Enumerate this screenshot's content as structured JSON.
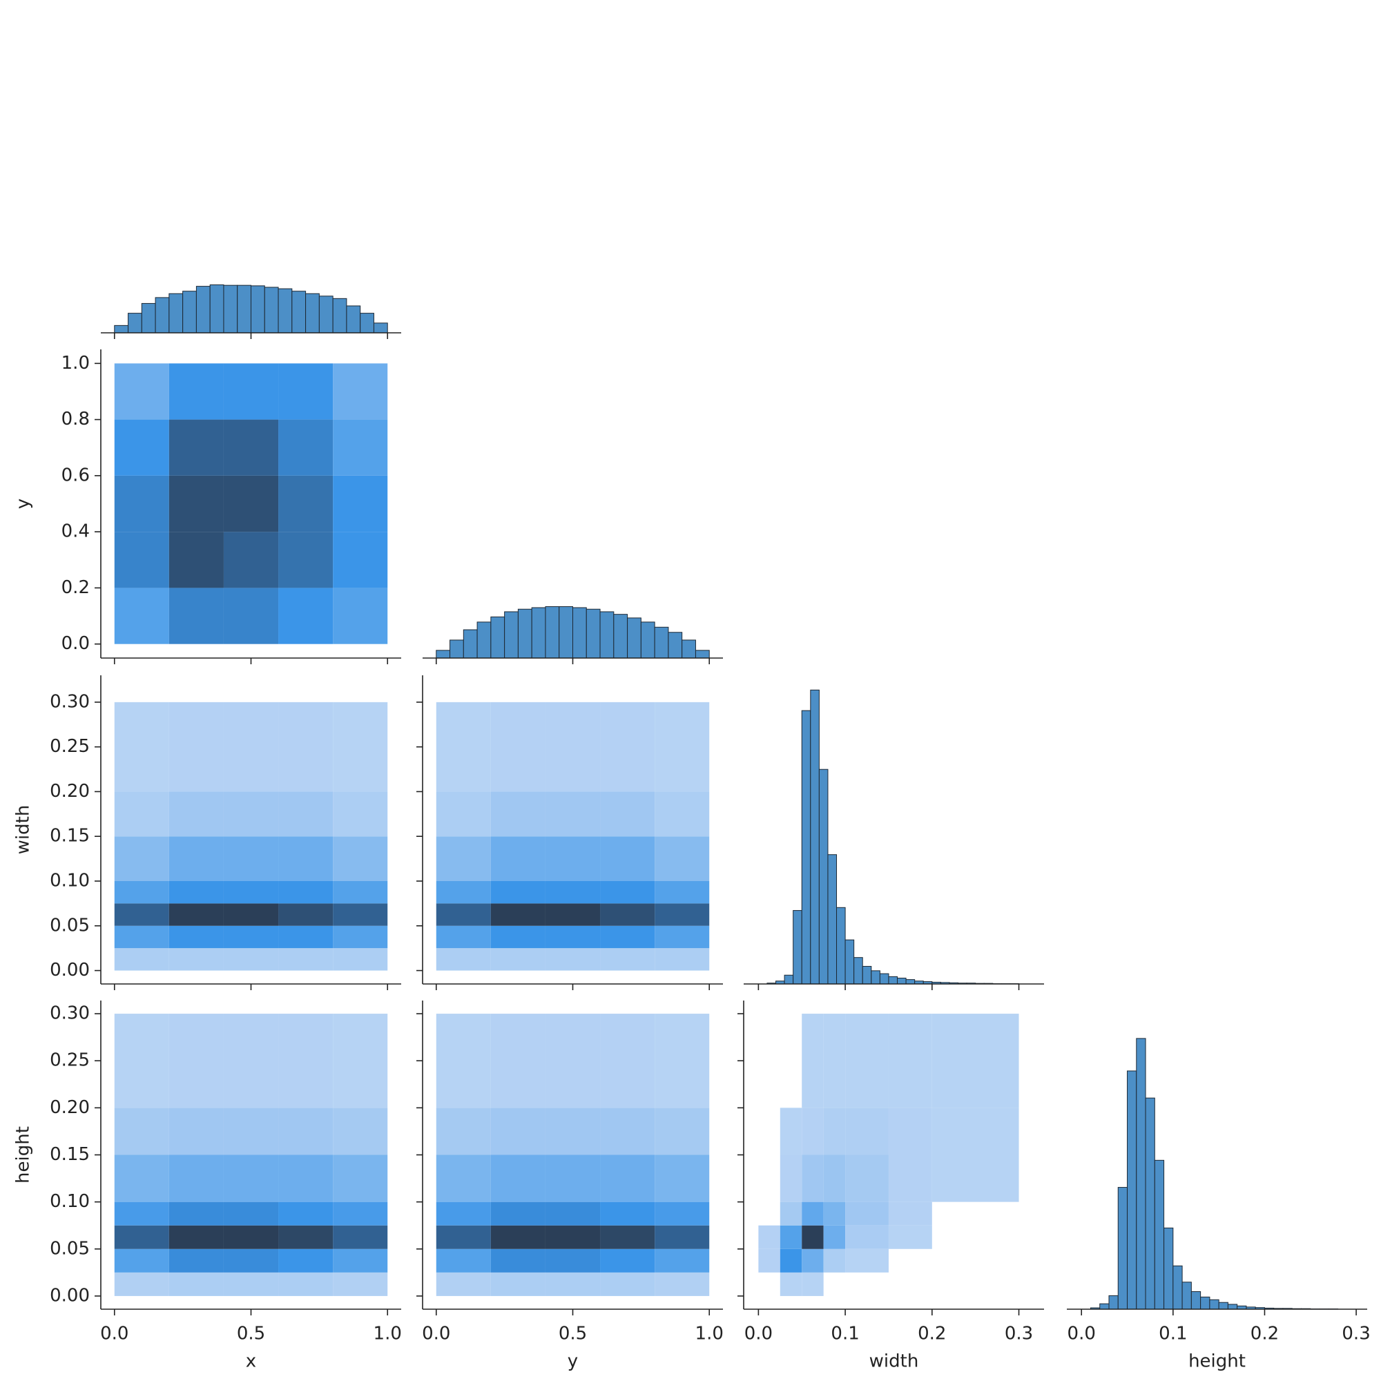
{
  "chart_data": {
    "type": "pairplot",
    "hist_color": "#4c8fc7",
    "edge_color": "#1d2833",
    "cmap": [
      "#b9d4f4",
      "#3b95e8",
      "#2b3f58"
    ],
    "variables": [
      {
        "label": "x",
        "lim": [
          -0.05,
          1.05
        ],
        "ticks": [
          {
            "value": 0,
            "label": "0.0"
          },
          {
            "value": 0.5,
            "label": "0.5"
          },
          {
            "value": 1,
            "label": "1.0"
          }
        ]
      },
      {
        "label": "y",
        "lim": [
          -0.05,
          1.05
        ],
        "ticks": [
          {
            "value": 0,
            "label": "0.0"
          },
          {
            "value": 0.2,
            "label": "0.2"
          },
          {
            "value": 0.4,
            "label": "0.4"
          },
          {
            "value": 0.6,
            "label": "0.6"
          },
          {
            "value": 0.8,
            "label": "0.8"
          },
          {
            "value": 1,
            "label": "1.0"
          }
        ],
        "xticks": [
          {
            "value": 0,
            "label": "0.0"
          },
          {
            "value": 0.5,
            "label": "0.5"
          },
          {
            "value": 1,
            "label": "1.0"
          }
        ]
      },
      {
        "label": "width",
        "lim": [
          -0.015,
          0.33
        ],
        "ticks": [
          {
            "value": 0,
            "label": "0.00"
          },
          {
            "value": 0.05,
            "label": "0.05"
          },
          {
            "value": 0.1,
            "label": "0.10"
          },
          {
            "value": 0.15,
            "label": "0.15"
          },
          {
            "value": 0.2,
            "label": "0.20"
          },
          {
            "value": 0.25,
            "label": "0.25"
          },
          {
            "value": 0.3,
            "label": "0.30"
          }
        ],
        "xlim": [
          -0.017,
          0.329
        ],
        "xticks": [
          {
            "value": 0,
            "label": "0.0"
          },
          {
            "value": 0.1,
            "label": "0.1"
          },
          {
            "value": 0.2,
            "label": "0.2"
          },
          {
            "value": 0.3,
            "label": "0.3"
          }
        ]
      },
      {
        "label": "height",
        "lim": [
          -0.014,
          0.314
        ],
        "ticks": [
          {
            "value": 0,
            "label": "0.00"
          },
          {
            "value": 0.05,
            "label": "0.05"
          },
          {
            "value": 0.1,
            "label": "0.10"
          },
          {
            "value": 0.15,
            "label": "0.15"
          },
          {
            "value": 0.2,
            "label": "0.20"
          },
          {
            "value": 0.25,
            "label": "0.25"
          },
          {
            "value": 0.3,
            "label": "0.30"
          }
        ],
        "xlim": [
          -0.016,
          0.312
        ],
        "xticks": [
          {
            "value": 0,
            "label": "0.0"
          },
          {
            "value": 0.1,
            "label": "0.1"
          },
          {
            "value": 0.2,
            "label": "0.2"
          },
          {
            "value": 0.3,
            "label": "0.3"
          }
        ]
      }
    ],
    "diagonal": [
      {
        "type": "histogram",
        "ylim": [
          0,
          6.3
        ],
        "bins": [
          0,
          0.05,
          0.1,
          0.15,
          0.2,
          0.25,
          0.3,
          0.35,
          0.4,
          0.45,
          0.5,
          0.55,
          0.6,
          0.65,
          0.7,
          0.75,
          0.8,
          0.85,
          0.9,
          0.95,
          1
        ],
        "values": [
          0.15,
          0.4,
          0.6,
          0.72,
          0.8,
          0.85,
          0.95,
          0.98,
          0.97,
          0.97,
          0.96,
          0.93,
          0.9,
          0.85,
          0.8,
          0.75,
          0.7,
          0.55,
          0.4,
          0.2
        ]
      },
      {
        "type": "histogram",
        "ylim": [
          0,
          6
        ],
        "bins": [
          0,
          0.05,
          0.1,
          0.15,
          0.2,
          0.25,
          0.3,
          0.35,
          0.4,
          0.45,
          0.5,
          0.55,
          0.6,
          0.65,
          0.7,
          0.75,
          0.8,
          0.85,
          0.9,
          0.95,
          1
        ],
        "values": [
          0.15,
          0.35,
          0.55,
          0.7,
          0.8,
          0.9,
          0.95,
          0.98,
          1,
          1,
          0.98,
          0.95,
          0.9,
          0.85,
          0.78,
          0.7,
          0.6,
          0.5,
          0.35,
          0.15
        ]
      },
      {
        "type": "histogram",
        "ylim": [
          0,
          1.05
        ],
        "bins": [
          0,
          0.01,
          0.02,
          0.03,
          0.04,
          0.05,
          0.06,
          0.07,
          0.08,
          0.09,
          0.1,
          0.11,
          0.12,
          0.13,
          0.14,
          0.15,
          0.16,
          0.17,
          0.18,
          0.19,
          0.2,
          0.21,
          0.22,
          0.23,
          0.24,
          0.25,
          0.26,
          0.27,
          0.28,
          0.29,
          0.3
        ],
        "values": [
          0,
          0.003,
          0.01,
          0.03,
          0.25,
          0.93,
          1,
          0.73,
          0.44,
          0.26,
          0.15,
          0.09,
          0.06,
          0.045,
          0.035,
          0.025,
          0.02,
          0.015,
          0.01,
          0.008,
          0.006,
          0.005,
          0.004,
          0.003,
          0.003,
          0.002,
          0.002,
          0.001,
          0.001,
          0.001
        ]
      },
      {
        "type": "histogram",
        "ylim": [
          0,
          1.14
        ],
        "bins": [
          0,
          0.01,
          0.02,
          0.03,
          0.04,
          0.05,
          0.06,
          0.07,
          0.08,
          0.09,
          0.1,
          0.11,
          0.12,
          0.13,
          0.14,
          0.15,
          0.16,
          0.17,
          0.18,
          0.19,
          0.2,
          0.21,
          0.22,
          0.23,
          0.24,
          0.25,
          0.26,
          0.27,
          0.28,
          0.29,
          0.3
        ],
        "values": [
          0,
          0.005,
          0.02,
          0.05,
          0.45,
          0.88,
          1,
          0.78,
          0.55,
          0.3,
          0.16,
          0.1,
          0.065,
          0.045,
          0.035,
          0.025,
          0.018,
          0.012,
          0.008,
          0.006,
          0.004,
          0.003,
          0.003,
          0.002,
          0.002,
          0.001,
          0.001,
          0.001,
          0,
          0
        ]
      }
    ],
    "off_diagonal": [
      {
        "type": "hist2d",
        "xbins": [
          0,
          0.2,
          0.4,
          0.6,
          0.8,
          1
        ],
        "ybins": [
          0,
          0.2,
          0.4,
          0.6,
          0.8,
          1
        ],
        "values": [
          [
            0.4,
            0.6,
            0.6,
            0.5,
            0.4
          ],
          [
            0.6,
            0.9,
            0.8,
            0.7,
            0.5
          ],
          [
            0.6,
            0.9,
            0.9,
            0.7,
            0.5
          ],
          [
            0.5,
            0.8,
            0.8,
            0.6,
            0.4
          ],
          [
            0.3,
            0.5,
            0.5,
            0.5,
            0.3
          ]
        ]
      },
      {
        "type": "hist2d",
        "xbins": [
          0,
          0.2,
          0.4,
          0.6,
          0.8,
          1
        ],
        "ybins": [
          0,
          0.025,
          0.05,
          0.075,
          0.1,
          0.15,
          0.2,
          0.3
        ],
        "values": [
          [
            0.05,
            0.05,
            0.05,
            0.05,
            0.05
          ],
          [
            0.4,
            0.5,
            0.5,
            0.5,
            0.4
          ],
          [
            0.8,
            1,
            1,
            0.9,
            0.8
          ],
          [
            0.4,
            0.5,
            0.5,
            0.5,
            0.4
          ],
          [
            0.2,
            0.3,
            0.3,
            0.3,
            0.2
          ],
          [
            0.05,
            0.1,
            0.1,
            0.1,
            0.05
          ],
          [
            0.01,
            0.02,
            0.02,
            0.02,
            0.01
          ]
        ]
      },
      {
        "type": "hist2d",
        "xbins": [
          0,
          0.2,
          0.4,
          0.6,
          0.8,
          1
        ],
        "ybins": [
          0,
          0.025,
          0.05,
          0.075,
          0.1,
          0.15,
          0.2,
          0.3
        ],
        "values": [
          [
            0.05,
            0.05,
            0.05,
            0.05,
            0.05
          ],
          [
            0.4,
            0.5,
            0.5,
            0.5,
            0.4
          ],
          [
            0.8,
            1,
            1,
            0.9,
            0.8
          ],
          [
            0.4,
            0.5,
            0.5,
            0.5,
            0.4
          ],
          [
            0.2,
            0.3,
            0.3,
            0.3,
            0.2
          ],
          [
            0.05,
            0.1,
            0.1,
            0.1,
            0.05
          ],
          [
            0.01,
            0.02,
            0.02,
            0.02,
            0.01
          ]
        ]
      },
      {
        "type": "hist2d",
        "xbins": [
          0,
          0.2,
          0.4,
          0.6,
          0.8,
          1
        ],
        "ybins": [
          0,
          0.025,
          0.05,
          0.075,
          0.1,
          0.15,
          0.2,
          0.3
        ],
        "values": [
          [
            0.03,
            0.05,
            0.05,
            0.05,
            0.03
          ],
          [
            0.4,
            0.55,
            0.55,
            0.5,
            0.4
          ],
          [
            0.8,
            1,
            1,
            0.95,
            0.8
          ],
          [
            0.45,
            0.55,
            0.55,
            0.5,
            0.45
          ],
          [
            0.25,
            0.3,
            0.3,
            0.3,
            0.25
          ],
          [
            0.08,
            0.1,
            0.1,
            0.1,
            0.08
          ],
          [
            0.01,
            0.02,
            0.02,
            0.02,
            0.01
          ]
        ]
      },
      {
        "type": "hist2d",
        "xbins": [
          0,
          0.2,
          0.4,
          0.6,
          0.8,
          1
        ],
        "ybins": [
          0,
          0.025,
          0.05,
          0.075,
          0.1,
          0.15,
          0.2,
          0.3
        ],
        "values": [
          [
            0.03,
            0.05,
            0.05,
            0.05,
            0.03
          ],
          [
            0.4,
            0.55,
            0.55,
            0.5,
            0.4
          ],
          [
            0.8,
            1,
            1,
            0.95,
            0.8
          ],
          [
            0.45,
            0.55,
            0.55,
            0.5,
            0.45
          ],
          [
            0.25,
            0.3,
            0.3,
            0.3,
            0.25
          ],
          [
            0.08,
            0.1,
            0.1,
            0.1,
            0.08
          ],
          [
            0.01,
            0.02,
            0.02,
            0.02,
            0.01
          ]
        ]
      },
      {
        "type": "hist2d",
        "xbins": [
          0,
          0.025,
          0.05,
          0.075,
          0.1,
          0.15,
          0.2,
          0.3
        ],
        "ybins": [
          0,
          0.025,
          0.05,
          0.075,
          0.1,
          0.15,
          0.2,
          0.3
        ],
        "values": [
          [
            0,
            0.01,
            0.01,
            0,
            0,
            0,
            0
          ],
          [
            0.02,
            0.5,
            0.3,
            0.05,
            0.01,
            0,
            0
          ],
          [
            0.02,
            0.4,
            1,
            0.3,
            0.06,
            0.01,
            0
          ],
          [
            0,
            0.08,
            0.35,
            0.25,
            0.1,
            0.02,
            0
          ],
          [
            0,
            0.02,
            0.1,
            0.12,
            0.08,
            0.02,
            0.01
          ],
          [
            0,
            0.01,
            0.02,
            0.04,
            0.04,
            0.02,
            0.01
          ],
          [
            0,
            0,
            0.01,
            0.01,
            0.01,
            0.01,
            0.01
          ]
        ]
      }
    ]
  }
}
